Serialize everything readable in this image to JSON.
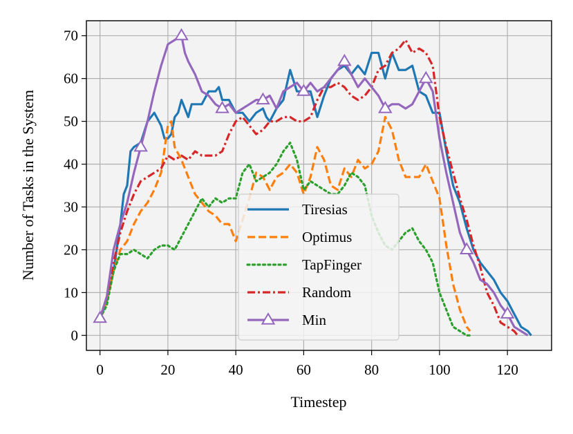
{
  "chart_data": {
    "type": "line",
    "title": "",
    "xlabel": "Timestep",
    "ylabel": "Number of Tasks in the System",
    "xlim": [
      -4,
      133
    ],
    "ylim": [
      -3.5,
      73.5
    ],
    "xticks": [
      0,
      20,
      40,
      60,
      80,
      100,
      120
    ],
    "yticks": [
      0,
      10,
      20,
      30,
      40,
      50,
      60,
      70
    ],
    "xtick_labels": [
      "0",
      "20",
      "40",
      "60",
      "80",
      "100",
      "120"
    ],
    "ytick_labels": [
      "0",
      "10",
      "20",
      "30",
      "40",
      "50",
      "60",
      "70"
    ],
    "grid": true,
    "legend_position": "lower center",
    "series": [
      {
        "name": "Tiresias",
        "color": "#1f77b4",
        "style": "solid",
        "marker": "none",
        "x": [
          0,
          2,
          4,
          6,
          7,
          8,
          9,
          10,
          12,
          14,
          15,
          16,
          18,
          19,
          20,
          21,
          22,
          23,
          24,
          25,
          26,
          27,
          28,
          30,
          32,
          34,
          35,
          36,
          38,
          40,
          42,
          44,
          46,
          48,
          49,
          50,
          52,
          54,
          56,
          58,
          60,
          62,
          64,
          66,
          68,
          70,
          72,
          74,
          76,
          78,
          80,
          82,
          84,
          86,
          88,
          90,
          92,
          94,
          96,
          98,
          100,
          102,
          104,
          106,
          108,
          110,
          112,
          114,
          116,
          118,
          120,
          122,
          124,
          126,
          127
        ],
        "y": [
          4,
          8,
          15,
          26,
          33,
          35,
          43,
          44,
          45,
          50,
          51,
          52,
          49,
          46,
          46,
          47,
          51,
          52,
          55,
          53,
          51,
          54,
          54,
          54,
          57,
          57,
          58,
          55,
          55,
          52,
          52,
          50,
          52,
          53,
          51,
          50,
          53,
          55,
          62,
          57,
          57,
          57,
          51,
          56,
          60,
          62,
          63,
          61,
          63,
          61,
          66,
          66,
          60,
          66,
          62,
          62,
          63,
          57,
          56,
          52,
          52,
          43,
          35,
          31,
          25,
          20,
          17,
          15,
          13,
          10,
          8,
          5,
          2,
          1,
          0
        ]
      },
      {
        "name": "Optimus",
        "color": "#ff7f0e",
        "style": "dashed",
        "marker": "none",
        "x": [
          0,
          2,
          4,
          6,
          8,
          10,
          12,
          14,
          16,
          18,
          20,
          21,
          22,
          24,
          26,
          28,
          30,
          32,
          34,
          36,
          38,
          40,
          42,
          44,
          46,
          48,
          50,
          52,
          54,
          56,
          58,
          60,
          62,
          64,
          66,
          68,
          70,
          72,
          74,
          76,
          78,
          80,
          82,
          84,
          86,
          88,
          90,
          92,
          94,
          96,
          98,
          100,
          102,
          104,
          106,
          108,
          109
        ],
        "y": [
          4,
          8,
          15,
          20,
          22,
          26,
          29,
          31,
          34,
          38,
          49,
          50,
          44,
          41,
          37,
          33,
          31,
          29,
          28,
          26,
          26,
          22,
          27,
          32,
          38,
          37,
          34,
          37,
          38,
          40,
          38,
          33,
          37,
          44,
          41,
          35,
          34,
          39,
          37,
          41,
          39,
          40,
          43,
          51,
          48,
          41,
          37,
          37,
          37,
          40,
          36,
          32,
          21,
          12,
          6,
          2,
          1
        ]
      },
      {
        "name": "TapFinger",
        "color": "#2ca02c",
        "style": "dotted",
        "marker": "none",
        "x": [
          0,
          2,
          4,
          6,
          8,
          10,
          12,
          14,
          16,
          18,
          20,
          22,
          24,
          26,
          28,
          30,
          32,
          34,
          36,
          38,
          40,
          42,
          44,
          46,
          48,
          50,
          52,
          54,
          56,
          58,
          60,
          62,
          64,
          66,
          68,
          70,
          72,
          74,
          76,
          78,
          80,
          82,
          84,
          86,
          88,
          90,
          92,
          94,
          96,
          98,
          100,
          102,
          104,
          106,
          108,
          109
        ],
        "y": [
          4,
          7,
          15,
          19,
          19,
          20,
          19,
          18,
          20,
          21,
          21,
          20,
          23,
          26,
          29,
          32,
          30,
          32,
          31,
          32,
          32,
          38,
          40,
          36,
          37,
          38,
          40,
          43,
          45,
          41,
          34,
          36,
          35,
          34,
          33,
          33,
          35,
          38,
          37,
          35,
          28,
          24,
          21,
          20,
          22,
          24,
          25,
          22,
          20,
          17,
          10,
          6,
          2,
          1,
          0,
          0
        ]
      },
      {
        "name": "Random",
        "color": "#d62728",
        "style": "dashdot",
        "marker": "none",
        "x": [
          0,
          2,
          4,
          6,
          8,
          10,
          12,
          14,
          16,
          18,
          20,
          22,
          24,
          26,
          28,
          30,
          32,
          34,
          36,
          38,
          40,
          42,
          44,
          46,
          48,
          50,
          52,
          54,
          56,
          58,
          60,
          62,
          64,
          66,
          68,
          70,
          72,
          74,
          76,
          78,
          80,
          82,
          84,
          86,
          88,
          90,
          92,
          94,
          96,
          98,
          100,
          102,
          104,
          106,
          108,
          110,
          112,
          114,
          116,
          118,
          120,
          122,
          123
        ],
        "y": [
          4,
          9,
          17,
          24,
          29,
          33,
          36,
          37,
          38,
          39,
          42,
          41,
          42,
          41,
          43,
          42,
          42,
          42,
          43,
          47,
          50,
          51,
          49,
          47,
          48,
          50,
          50,
          51,
          51,
          50,
          50,
          51,
          55,
          58,
          58,
          59,
          58,
          56,
          55,
          56,
          58,
          62,
          63,
          66,
          67,
          69,
          66,
          67,
          66,
          63,
          51,
          44,
          38,
          32,
          27,
          21,
          16,
          10,
          7,
          3,
          2,
          1,
          0
        ]
      },
      {
        "name": "Min",
        "color": "#9467bd",
        "style": "solid",
        "marker": "triangle",
        "x": [
          0,
          2,
          4,
          6,
          8,
          10,
          12,
          14,
          16,
          18,
          20,
          22,
          24,
          25,
          26,
          28,
          30,
          32,
          34,
          36,
          38,
          40,
          42,
          44,
          46,
          48,
          50,
          52,
          54,
          56,
          58,
          60,
          62,
          64,
          66,
          68,
          70,
          72,
          74,
          76,
          78,
          80,
          82,
          84,
          86,
          88,
          90,
          92,
          94,
          96,
          98,
          100,
          102,
          104,
          106,
          108,
          110,
          112,
          114,
          116,
          118,
          120,
          122,
          124,
          126
        ],
        "y": [
          4,
          9,
          20,
          26,
          31,
          38,
          44,
          50,
          57,
          63,
          68,
          69,
          70,
          66,
          64,
          61,
          57,
          56,
          54,
          53,
          54,
          52,
          53,
          54,
          55,
          55,
          56,
          53,
          57,
          58,
          59,
          57,
          59,
          57,
          58,
          60,
          62,
          64,
          61,
          58,
          60,
          58,
          56,
          53,
          54,
          54,
          53,
          54,
          57,
          60,
          57,
          46,
          38,
          31,
          24,
          20,
          17,
          13,
          12,
          10,
          7,
          5,
          2,
          1,
          0
        ],
        "marker_x": [
          0,
          12,
          24,
          36,
          48,
          60,
          72,
          84,
          96,
          108,
          120
        ]
      }
    ]
  }
}
